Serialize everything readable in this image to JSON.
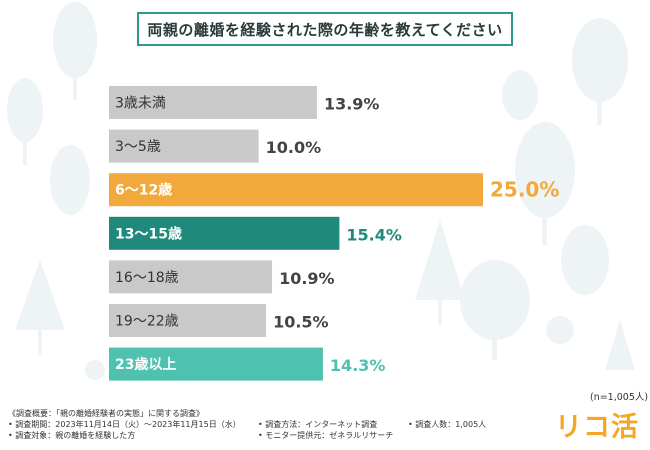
{
  "chart_data": {
    "type": "bar",
    "orientation": "horizontal",
    "title": "両親の離婚を経験された際の年齢を教えてください",
    "categories": [
      "3歳未満",
      "3〜5歳",
      "6〜12歳",
      "13〜15歳",
      "16〜18歳",
      "19〜22歳",
      "23歳以上"
    ],
    "values": [
      13.9,
      10.0,
      25.0,
      15.4,
      10.9,
      10.5,
      14.3
    ],
    "value_labels": [
      "13.9%",
      "10.0%",
      "25.0%",
      "15.4%",
      "10.9%",
      "10.5%",
      "14.3%"
    ],
    "bar_colors": [
      "#c9c9c9",
      "#c9c9c9",
      "#f2a93b",
      "#1f8a7c",
      "#c9c9c9",
      "#c9c9c9",
      "#4fc1b0"
    ],
    "value_colors": [
      "#444444",
      "#444444",
      "#f2a93b",
      "#1f8a7c",
      "#444444",
      "#444444",
      "#4fc1b0"
    ],
    "label_colors": [
      "#333333",
      "#333333",
      "#ffffff",
      "#ffffff",
      "#333333",
      "#333333",
      "#ffffff"
    ],
    "xlim": [
      0,
      25
    ]
  },
  "sample_size": "(n=1,005人)",
  "brand": "リコ活",
  "footer": {
    "overview": "《調査概要：「親の離婚経験者の実態」に関する調査》",
    "period": "• 調査期間：2023年11月14日（火）〜2023年11月15日（水）",
    "method": "• 調査方法：インターネット調査",
    "respondents": "• 調査人数：1,005人",
    "target": "• 調査対象：親の離婚を経験した方",
    "monitor": "• モニター提供元：ゼネラルリサーチ"
  }
}
